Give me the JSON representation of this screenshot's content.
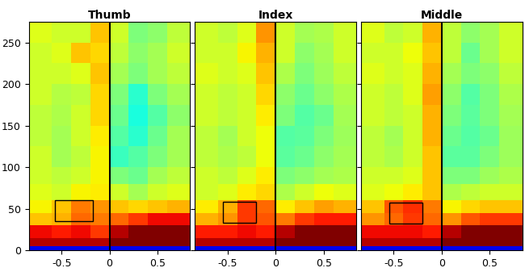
{
  "chart_data": [
    {
      "type": "heatmap",
      "title": "Thumb",
      "x_edges": [
        -0.84,
        -0.6,
        -0.4,
        -0.2,
        0,
        0.2,
        0.4,
        0.6,
        0.84
      ],
      "y_edges": [
        0,
        5,
        15,
        30,
        45,
        60,
        80,
        100,
        125,
        150,
        175,
        200,
        225,
        250,
        275
      ],
      "cells": [
        [
          0.1,
          0.1,
          0.1,
          0.1,
          0.1,
          0.1,
          0.1,
          0.1
        ],
        [
          0.95,
          0.95,
          0.95,
          0.95,
          1.0,
          1.0,
          1.0,
          1.0
        ],
        [
          0.9,
          0.88,
          0.9,
          0.85,
          0.95,
          1.0,
          1.0,
          1.0
        ],
        [
          0.7,
          0.72,
          0.8,
          0.78,
          0.8,
          0.85,
          0.9,
          0.9
        ],
        [
          0.65,
          0.7,
          0.78,
          0.75,
          0.7,
          0.68,
          0.7,
          0.72
        ],
        [
          0.62,
          0.6,
          0.65,
          0.66,
          0.6,
          0.55,
          0.6,
          0.62
        ],
        [
          0.6,
          0.58,
          0.6,
          0.65,
          0.5,
          0.48,
          0.55,
          0.58
        ],
        [
          0.6,
          0.55,
          0.58,
          0.65,
          0.42,
          0.45,
          0.5,
          0.55
        ],
        [
          0.58,
          0.55,
          0.6,
          0.66,
          0.45,
          0.4,
          0.48,
          0.55
        ],
        [
          0.58,
          0.56,
          0.6,
          0.68,
          0.48,
          0.38,
          0.45,
          0.52
        ],
        [
          0.6,
          0.57,
          0.58,
          0.68,
          0.5,
          0.4,
          0.5,
          0.55
        ],
        [
          0.6,
          0.6,
          0.62,
          0.7,
          0.55,
          0.5,
          0.55,
          0.58
        ],
        [
          0.6,
          0.62,
          0.7,
          0.68,
          0.58,
          0.52,
          0.55,
          0.6
        ],
        [
          0.62,
          0.6,
          0.6,
          0.7,
          0.6,
          0.5,
          0.52,
          0.58
        ]
      ],
      "zlim": [
        0,
        1
      ],
      "xlim": [
        -0.84,
        0.84
      ],
      "ylim": [
        0,
        275
      ],
      "xticks": [
        -0.5,
        0,
        0.5
      ],
      "yticks": [
        0,
        50,
        100,
        150,
        200,
        250
      ],
      "vline": 0,
      "box": {
        "x": [
          -0.57,
          -0.17
        ],
        "y": [
          35,
          60
        ]
      }
    },
    {
      "type": "heatmap",
      "title": "Index",
      "x_edges": [
        -0.84,
        -0.6,
        -0.4,
        -0.2,
        0,
        0.2,
        0.4,
        0.6,
        0.84
      ],
      "y_edges": [
        0,
        5,
        15,
        30,
        45,
        60,
        80,
        100,
        125,
        150,
        175,
        200,
        225,
        250,
        275
      ],
      "cells": [
        [
          0.1,
          0.1,
          0.1,
          0.1,
          0.1,
          0.1,
          0.1,
          0.1
        ],
        [
          0.95,
          0.95,
          0.95,
          0.95,
          1.0,
          1.0,
          1.0,
          1.0
        ],
        [
          0.88,
          0.88,
          0.9,
          0.88,
          0.95,
          1.0,
          1.0,
          1.0
        ],
        [
          0.72,
          0.75,
          0.85,
          0.82,
          0.78,
          0.85,
          0.88,
          0.88
        ],
        [
          0.66,
          0.72,
          0.85,
          0.8,
          0.66,
          0.7,
          0.74,
          0.72
        ],
        [
          0.6,
          0.62,
          0.66,
          0.68,
          0.56,
          0.6,
          0.64,
          0.62
        ],
        [
          0.6,
          0.58,
          0.62,
          0.66,
          0.5,
          0.52,
          0.55,
          0.56
        ],
        [
          0.58,
          0.56,
          0.58,
          0.64,
          0.46,
          0.48,
          0.52,
          0.55
        ],
        [
          0.58,
          0.55,
          0.6,
          0.64,
          0.45,
          0.46,
          0.5,
          0.54
        ],
        [
          0.6,
          0.58,
          0.6,
          0.66,
          0.5,
          0.45,
          0.48,
          0.55
        ],
        [
          0.6,
          0.58,
          0.6,
          0.68,
          0.52,
          0.48,
          0.52,
          0.56
        ],
        [
          0.62,
          0.6,
          0.62,
          0.7,
          0.56,
          0.5,
          0.54,
          0.58
        ],
        [
          0.6,
          0.6,
          0.65,
          0.72,
          0.6,
          0.52,
          0.55,
          0.6
        ],
        [
          0.6,
          0.58,
          0.62,
          0.75,
          0.6,
          0.55,
          0.56,
          0.6
        ]
      ],
      "zlim": [
        0,
        1
      ],
      "xlim": [
        -0.84,
        0.84
      ],
      "ylim": [
        0,
        275
      ],
      "xticks": [
        -0.5,
        0,
        0.5
      ],
      "yticks": [
        0,
        50,
        100,
        150,
        200,
        250
      ],
      "tick_labels": "x",
      "vline": 0,
      "box": {
        "x": [
          -0.55,
          -0.2
        ],
        "y": [
          33,
          58
        ]
      }
    },
    {
      "type": "heatmap",
      "title": "Middle",
      "x_edges": [
        -0.84,
        -0.6,
        -0.4,
        -0.2,
        0,
        0.2,
        0.4,
        0.6,
        0.84
      ],
      "y_edges": [
        0,
        5,
        15,
        30,
        45,
        60,
        80,
        100,
        125,
        150,
        175,
        200,
        225,
        250,
        275
      ],
      "cells": [
        [
          0.1,
          0.1,
          0.1,
          0.1,
          0.1,
          0.1,
          0.1,
          0.1
        ],
        [
          0.95,
          0.95,
          0.95,
          0.95,
          1.0,
          1.0,
          1.0,
          1.0
        ],
        [
          0.9,
          0.9,
          0.9,
          0.88,
          0.95,
          1.0,
          1.0,
          1.0
        ],
        [
          0.75,
          0.8,
          0.85,
          0.8,
          0.75,
          0.82,
          0.85,
          0.85
        ],
        [
          0.7,
          0.82,
          0.86,
          0.78,
          0.65,
          0.68,
          0.7,
          0.7
        ],
        [
          0.62,
          0.64,
          0.66,
          0.7,
          0.56,
          0.58,
          0.6,
          0.6
        ],
        [
          0.6,
          0.6,
          0.62,
          0.7,
          0.5,
          0.5,
          0.54,
          0.56
        ],
        [
          0.58,
          0.56,
          0.6,
          0.7,
          0.46,
          0.46,
          0.5,
          0.54
        ],
        [
          0.58,
          0.55,
          0.6,
          0.72,
          0.48,
          0.45,
          0.48,
          0.54
        ],
        [
          0.6,
          0.58,
          0.6,
          0.72,
          0.5,
          0.46,
          0.5,
          0.55
        ],
        [
          0.6,
          0.58,
          0.62,
          0.74,
          0.52,
          0.45,
          0.5,
          0.56
        ],
        [
          0.62,
          0.6,
          0.62,
          0.72,
          0.55,
          0.5,
          0.52,
          0.58
        ],
        [
          0.6,
          0.6,
          0.64,
          0.7,
          0.58,
          0.48,
          0.55,
          0.6
        ],
        [
          0.62,
          0.58,
          0.6,
          0.72,
          0.58,
          0.52,
          0.55,
          0.6
        ]
      ],
      "zlim": [
        0,
        1
      ],
      "xlim": [
        -0.84,
        0.84
      ],
      "ylim": [
        0,
        275
      ],
      "xticks": [
        -0.5,
        0,
        0.5
      ],
      "yticks": [
        0,
        50,
        100,
        150,
        200,
        250
      ],
      "tick_labels": "x",
      "vline": 0,
      "box": {
        "x": [
          -0.55,
          -0.2
        ],
        "y": [
          32,
          57
        ]
      }
    }
  ]
}
